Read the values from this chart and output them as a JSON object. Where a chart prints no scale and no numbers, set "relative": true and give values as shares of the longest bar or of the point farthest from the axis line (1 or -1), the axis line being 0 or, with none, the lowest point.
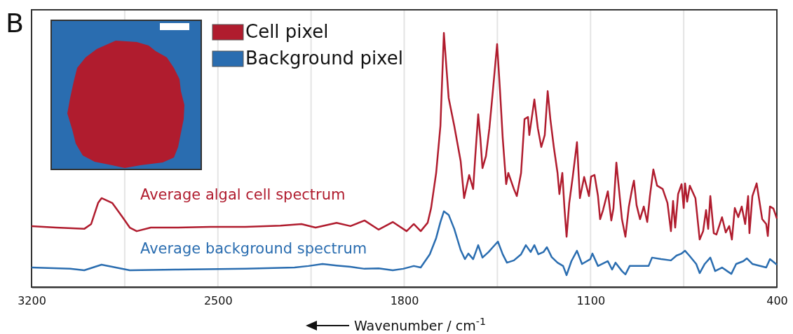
{
  "chart_data": {
    "type": "line",
    "xlabel": "Wavenumber / cm$^{-1}$",
    "relative": true,
    "xlim": [
      3200,
      400
    ],
    "xticks": [
      3200,
      {
        "value": 2850,
        "label": null
      },
      2500,
      {
        "value": 2150,
        "label": null
      },
      1800,
      {
        "value": 1450,
        "label": null
      },
      1100,
      {
        "value": 750,
        "label": null
      },
      400
    ],
    "grid": "x",
    "line_style": "solid",
    "marker": "none",
    "annotations": [
      "B",
      "Cell pixel",
      "Background pixel"
    ],
    "series": [
      {
        "name": "Average algal cell spectrum",
        "color": "#b01c2e",
        "x": [
          3200,
          3108,
          3002,
          2976,
          2950,
          2937,
          2897,
          2858,
          2831,
          2805,
          2752,
          2660,
          2528,
          2397,
          2265,
          2186,
          2133,
          2054,
          2002,
          1949,
          1896,
          1843,
          1791,
          1764,
          1738,
          1712,
          1699,
          1680,
          1664,
          1651,
          1633,
          1612,
          1588,
          1575,
          1556,
          1541,
          1533,
          1522,
          1514,
          1506,
          1493,
          1480,
          1467,
          1451,
          1440,
          1430,
          1417,
          1409,
          1388,
          1377,
          1361,
          1348,
          1335,
          1330,
          1311,
          1298,
          1285,
          1272,
          1261,
          1251,
          1238,
          1224,
          1217,
          1206,
          1198,
          1190,
          1180,
          1167,
          1151,
          1140,
          1124,
          1106,
          1098,
          1085,
          1072,
          1064,
          1053,
          1035,
          1022,
          1014,
          1003,
          982,
          969,
          956,
          943,
          937,
          927,
          914,
          900,
          887,
          877,
          864,
          850,
          829,
          811,
          798,
          790,
          782,
          771,
          758,
          750,
          745,
          737,
          727,
          706,
          690,
          677,
          666,
          658,
          650,
          637,
          627,
          606,
          592,
          579,
          569,
          558,
          545,
          532,
          519,
          508,
          503,
          492,
          476,
          455,
          440,
          434,
          426,
          413,
          400
        ],
        "values": [
          0.24,
          0.234,
          0.229,
          0.248,
          0.331,
          0.35,
          0.331,
          0.275,
          0.234,
          0.22,
          0.234,
          0.234,
          0.237,
          0.237,
          0.242,
          0.248,
          0.234,
          0.253,
          0.24,
          0.262,
          0.226,
          0.256,
          0.22,
          0.248,
          0.22,
          0.253,
          0.311,
          0.449,
          0.634,
          1.0,
          0.744,
          0.634,
          0.496,
          0.35,
          0.441,
          0.386,
          0.515,
          0.68,
          0.587,
          0.468,
          0.515,
          0.625,
          0.771,
          0.956,
          0.771,
          0.587,
          0.405,
          0.449,
          0.386,
          0.358,
          0.449,
          0.661,
          0.669,
          0.598,
          0.738,
          0.625,
          0.551,
          0.598,
          0.771,
          0.661,
          0.551,
          0.449,
          0.366,
          0.449,
          0.311,
          0.198,
          0.331,
          0.433,
          0.57,
          0.35,
          0.433,
          0.358,
          0.435,
          0.441,
          0.358,
          0.267,
          0.303,
          0.377,
          0.262,
          0.309,
          0.49,
          0.267,
          0.198,
          0.317,
          0.391,
          0.419,
          0.322,
          0.267,
          0.317,
          0.256,
          0.358,
          0.463,
          0.399,
          0.386,
          0.331,
          0.22,
          0.339,
          0.234,
          0.366,
          0.405,
          0.311,
          0.408,
          0.336,
          0.399,
          0.35,
          0.187,
          0.22,
          0.303,
          0.229,
          0.358,
          0.212,
          0.207,
          0.275,
          0.215,
          0.24,
          0.187,
          0.311,
          0.275,
          0.317,
          0.248,
          0.358,
          0.212,
          0.358,
          0.408,
          0.267,
          0.248,
          0.201,
          0.317,
          0.309,
          0.27
        ]
      },
      {
        "name": "Average background spectrum",
        "color": "#2a6db0",
        "x": [
          3200,
          3055,
          3002,
          2937,
          2897,
          2831,
          2660,
          2397,
          2212,
          2160,
          2107,
          2054,
          2002,
          1949,
          1896,
          1843,
          1804,
          1764,
          1738,
          1704,
          1680,
          1664,
          1651,
          1633,
          1612,
          1588,
          1572,
          1559,
          1541,
          1522,
          1506,
          1483,
          1467,
          1448,
          1430,
          1414,
          1388,
          1361,
          1343,
          1325,
          1311,
          1296,
          1277,
          1264,
          1246,
          1224,
          1203,
          1190,
          1172,
          1151,
          1132,
          1101,
          1093,
          1072,
          1035,
          1019,
          1006,
          982,
          969,
          953,
          882,
          869,
          835,
          798,
          777,
          758,
          745,
          729,
          703,
          690,
          671,
          650,
          632,
          606,
          584,
          571,
          553,
          526,
          513,
          492,
          440,
          426,
          400
        ],
        "values": [
          0.077,
          0.072,
          0.066,
          0.088,
          0.08,
          0.066,
          0.069,
          0.072,
          0.077,
          0.083,
          0.091,
          0.085,
          0.08,
          0.072,
          0.074,
          0.066,
          0.072,
          0.083,
          0.077,
          0.129,
          0.193,
          0.256,
          0.298,
          0.284,
          0.229,
          0.146,
          0.11,
          0.132,
          0.11,
          0.165,
          0.116,
          0.138,
          0.157,
          0.179,
          0.129,
          0.096,
          0.105,
          0.129,
          0.165,
          0.138,
          0.165,
          0.129,
          0.138,
          0.157,
          0.118,
          0.096,
          0.083,
          0.047,
          0.102,
          0.143,
          0.091,
          0.11,
          0.132,
          0.083,
          0.102,
          0.069,
          0.096,
          0.063,
          0.05,
          0.083,
          0.083,
          0.116,
          0.11,
          0.105,
          0.124,
          0.132,
          0.143,
          0.124,
          0.091,
          0.055,
          0.091,
          0.116,
          0.063,
          0.077,
          0.061,
          0.052,
          0.091,
          0.102,
          0.113,
          0.091,
          0.077,
          0.11,
          0.088
        ]
      }
    ]
  }
}
